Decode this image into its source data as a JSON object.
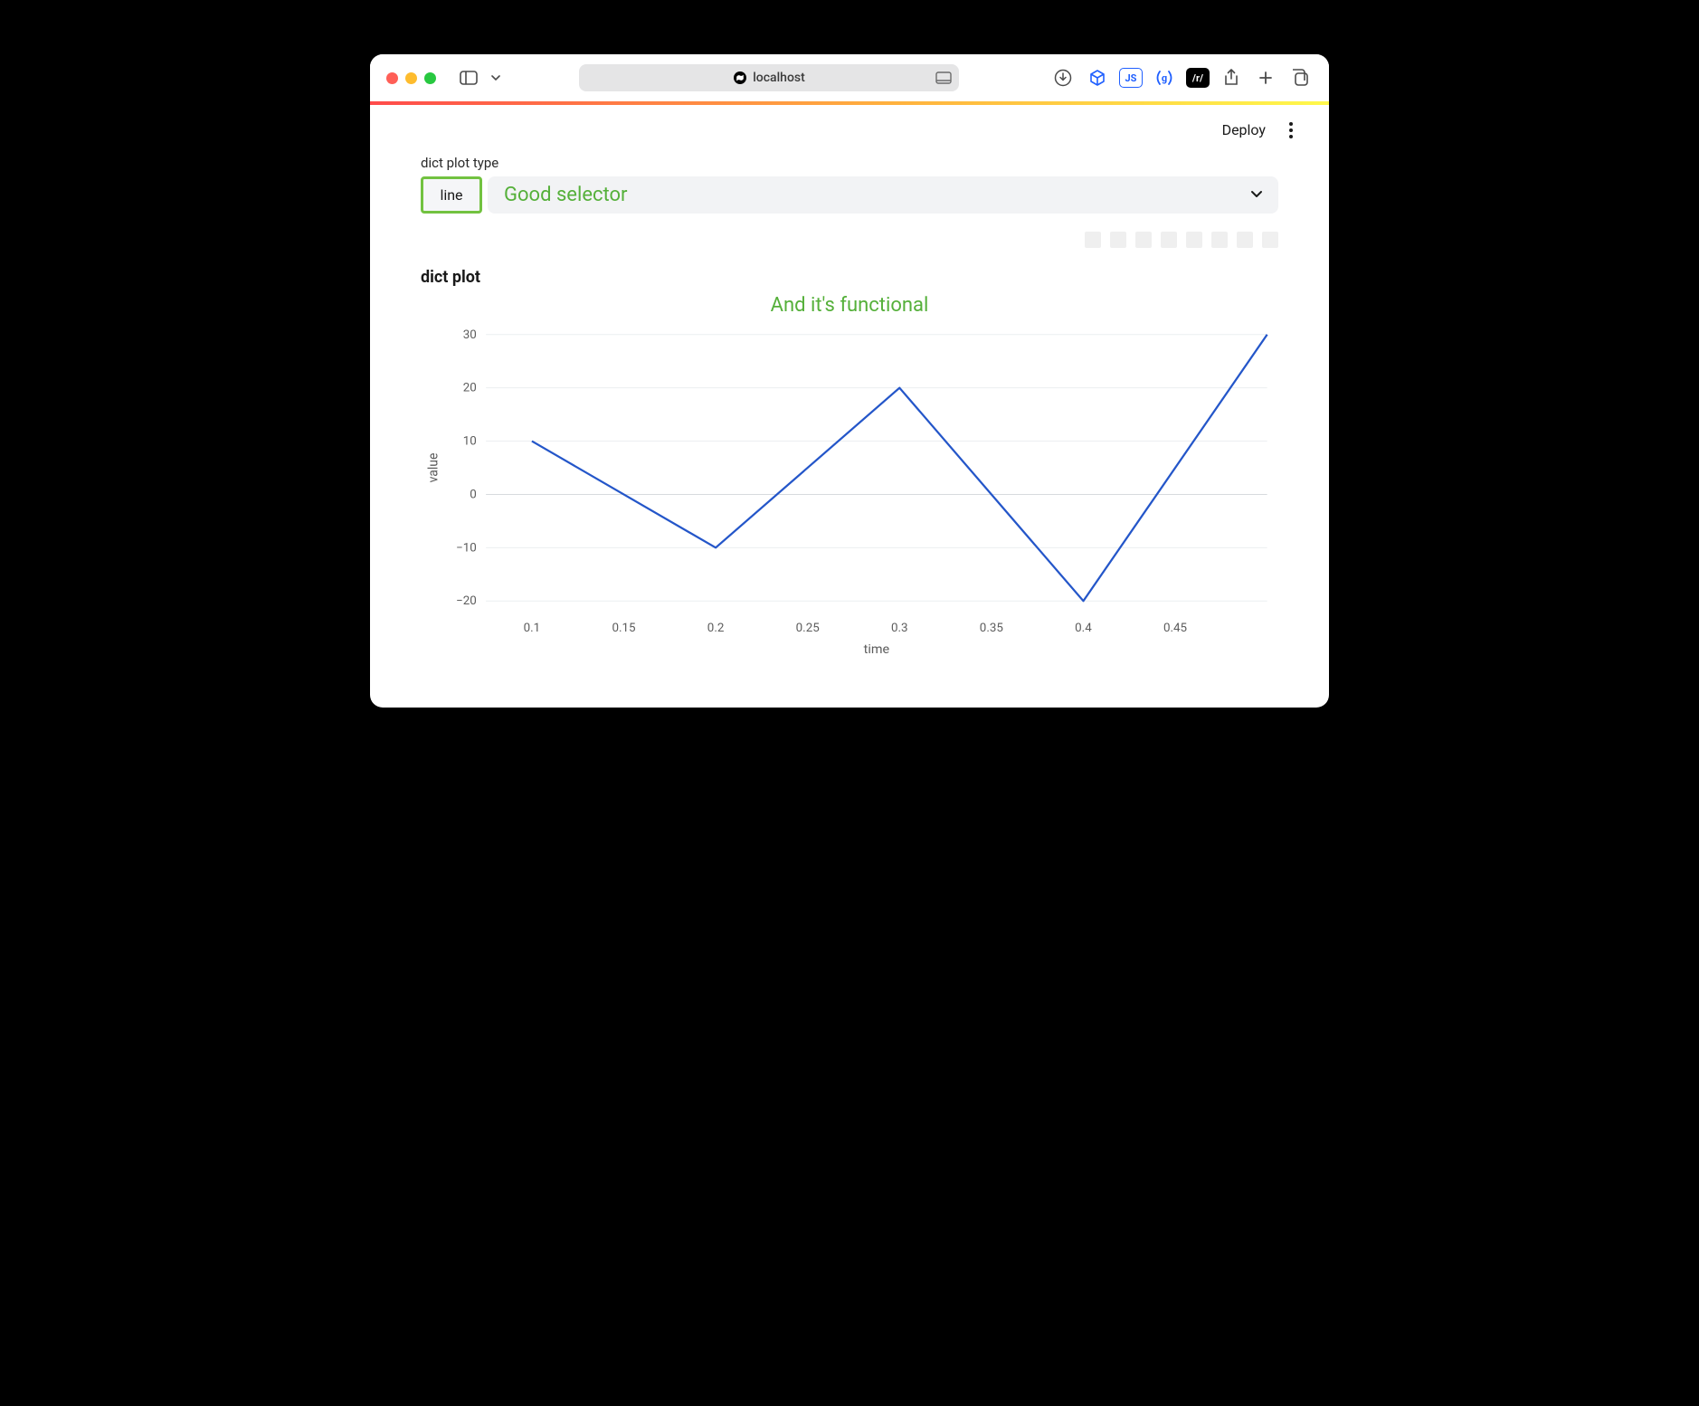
{
  "browser": {
    "address": "localhost",
    "traffic_colors": {
      "close": "#ff5f57",
      "min": "#febc2e",
      "max": "#28c840"
    },
    "extensions": [
      {
        "name": "downloads-icon"
      },
      {
        "name": "cube-icon",
        "style": "blue-outline"
      },
      {
        "name": "js-badge",
        "text": "JS",
        "style": "blue-box"
      },
      {
        "name": "grammarly-icon",
        "style": "blue-outline"
      },
      {
        "name": "reddit-badge",
        "text": "/r/",
        "style": "black-box"
      }
    ]
  },
  "gradient": {
    "from": "#ff4b4b",
    "via": "#ffb23e",
    "to": "#fff94b"
  },
  "header": {
    "deploy_label": "Deploy"
  },
  "selector": {
    "label": "dict plot type",
    "current_value": "line",
    "annotation": "Good selector",
    "highlight_color": "#72c240",
    "annotation_color": "#55b03a",
    "bg_color": "#f2f3f5"
  },
  "chart": {
    "type": "line",
    "title": "dict plot",
    "annotation": "And it's functional",
    "annotation_color": "#55b03a",
    "xlabel": "time",
    "ylabel": "value",
    "background_color": "#ffffff",
    "grid_color": "#eceff1",
    "zero_line_color": "#d7dbde",
    "line_color": "#2456c9",
    "line_width": 2.2,
    "x_values": [
      0.1,
      0.2,
      0.3,
      0.4,
      0.5
    ],
    "y_values": [
      10,
      -10,
      20,
      -20,
      30
    ],
    "xlim": [
      0.075,
      0.5
    ],
    "ylim": [
      -22,
      32
    ],
    "xticks": [
      0.1,
      0.15,
      0.2,
      0.25,
      0.3,
      0.35,
      0.4,
      0.45
    ],
    "yticks": [
      -20,
      -10,
      0,
      10,
      20,
      30
    ],
    "axis_fontsize": 13,
    "label_fontsize": 14,
    "title_fontsize": 18,
    "title_fontweight": 700
  }
}
